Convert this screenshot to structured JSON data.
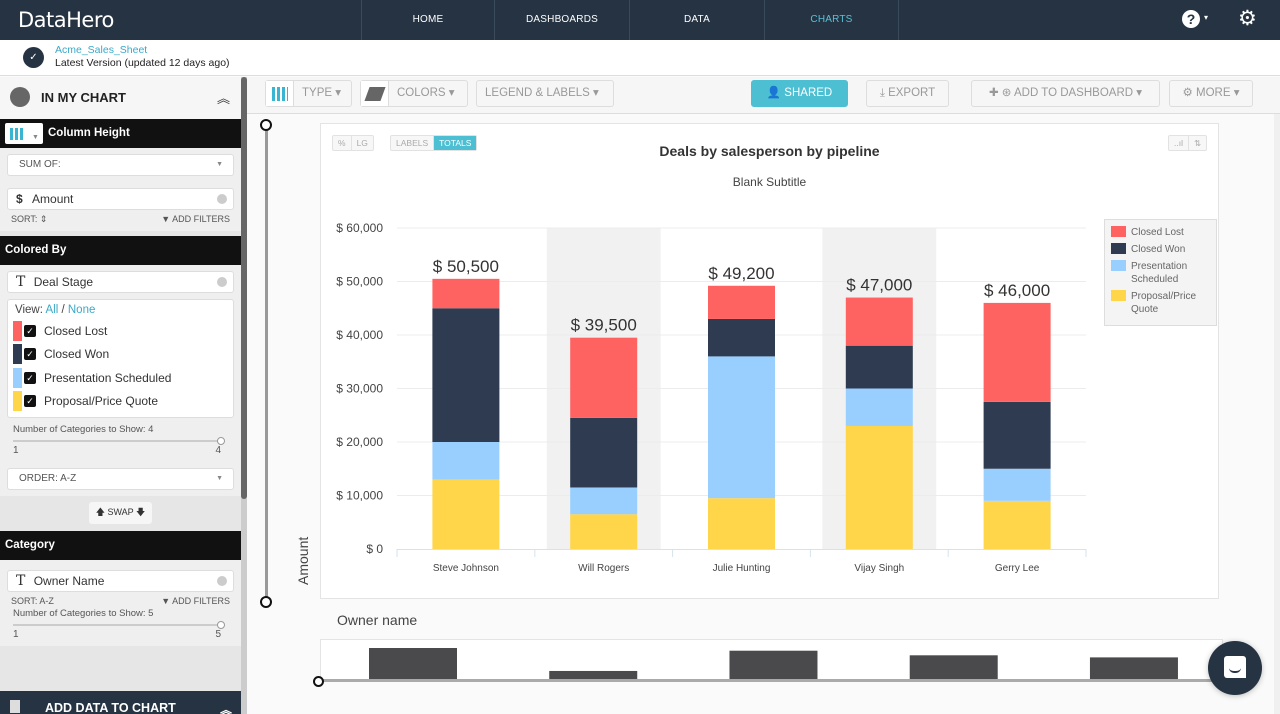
{
  "app": {
    "logo": "DataHero"
  },
  "nav": {
    "tabs": [
      {
        "label": "HOME",
        "active": false
      },
      {
        "label": "DASHBOARDS",
        "active": false
      },
      {
        "label": "DATA",
        "active": false
      },
      {
        "label": "CHARTS",
        "active": true
      }
    ],
    "help_icon": "?",
    "help_caret": "▾",
    "settings_icon": "⚙"
  },
  "file": {
    "name": "Acme_Sales_Sheet",
    "version": "Latest Version (updated 12 days ago)",
    "icon": "✓"
  },
  "sidebar": {
    "title": "IN MY CHART",
    "collapse_icon": "︽",
    "column_height": {
      "label": "Column Height",
      "aggregate": "SUM OF:",
      "field_icon": "$",
      "field": "Amount",
      "sort": "SORT: ⇕",
      "add_filters": "▼ ADD FILTERS"
    },
    "colored_by": {
      "label": "Colored By",
      "field_icon": "T",
      "field": "Deal Stage",
      "view_prefix": "View:",
      "view_all": "All",
      "view_sep": "/",
      "view_none": "None",
      "stages": [
        {
          "label": "Closed Lost",
          "color": "#ff6361",
          "checked": true
        },
        {
          "label": "Closed Won",
          "color": "#2e3b50",
          "checked": true
        },
        {
          "label": "Presentation Scheduled",
          "color": "#99cfff",
          "checked": true
        },
        {
          "label": "Proposal/Price Quote",
          "color": "#ffd54a",
          "checked": true
        }
      ],
      "categories_label": "Number of Categories to Show: 4",
      "slider_min": "1",
      "slider_max": "4",
      "order": "ORDER: A-Z",
      "swap": "🡅 SWAP 🡇"
    },
    "category": {
      "label": "Category",
      "field_icon": "T",
      "field": "Owner Name",
      "sort": "SORT: A-Z",
      "add_filters": "▼ ADD FILTERS",
      "categories_label": "Number of Categories to Show: 5",
      "slider_min": "1",
      "slider_max": "5"
    },
    "add_data": "ADD DATA TO CHART",
    "add_data_icon": "︽"
  },
  "toolbar": {
    "type": "TYPE ▾",
    "colors": "COLORS ▾",
    "legend": "LEGEND & LABELS ▾",
    "shared": "SHARED",
    "export": "⤓ EXPORT",
    "add_dashboard": "✚ ⊛ ADD TO DASHBOARD ▾",
    "more": "⚙ MORE ▾"
  },
  "chart_controls": {
    "pct": "%",
    "lg": "LG",
    "labels": "LABELS",
    "totals": "TOTALS",
    "bars_icon": "..ıl",
    "sort_icon": "⇅"
  },
  "chart_data": {
    "type": "bar",
    "stacked": true,
    "title": "Deals by salesperson by pipeline",
    "subtitle": "Blank Subtitle",
    "xlabel": "Owner name",
    "ylabel": "Amount",
    "ylim": [
      0,
      60000
    ],
    "yticks": [
      0,
      10000,
      20000,
      30000,
      40000,
      50000,
      60000
    ],
    "ytick_labels": [
      "$ 0",
      "$ 10,000",
      "$ 20,000",
      "$ 30,000",
      "$ 40,000",
      "$ 50,000",
      "$ 60,000"
    ],
    "grid": true,
    "legend_position": "right",
    "categories": [
      "Steve Johnson",
      "Will Rogers",
      "Julie Hunting",
      "Vijay Singh",
      "Gerry Lee"
    ],
    "series": [
      {
        "name": "Proposal/Price Quote",
        "color": "#ffd54a",
        "values": [
          13000,
          6500,
          9500,
          23000,
          9000
        ]
      },
      {
        "name": "Presentation Scheduled",
        "color": "#99cfff",
        "values": [
          7000,
          5000,
          26500,
          7000,
          6000
        ]
      },
      {
        "name": "Closed Won",
        "color": "#2e3b50",
        "values": [
          25000,
          13000,
          7000,
          8000,
          12500
        ]
      },
      {
        "name": "Closed Lost",
        "color": "#ff6361",
        "values": [
          5500,
          15000,
          6200,
          9000,
          18500
        ]
      }
    ],
    "totals": [
      50500,
      39500,
      49200,
      47000,
      46000
    ],
    "total_labels": [
      "$ 50,500",
      "$ 39,500",
      "$ 49,200",
      "$ 47,000",
      "$ 46,000"
    ],
    "legend": [
      "Closed Lost",
      "Closed Won",
      "Presentation Scheduled",
      "Proposal/Price Quote"
    ]
  },
  "overview": {
    "title": "Owner name"
  }
}
